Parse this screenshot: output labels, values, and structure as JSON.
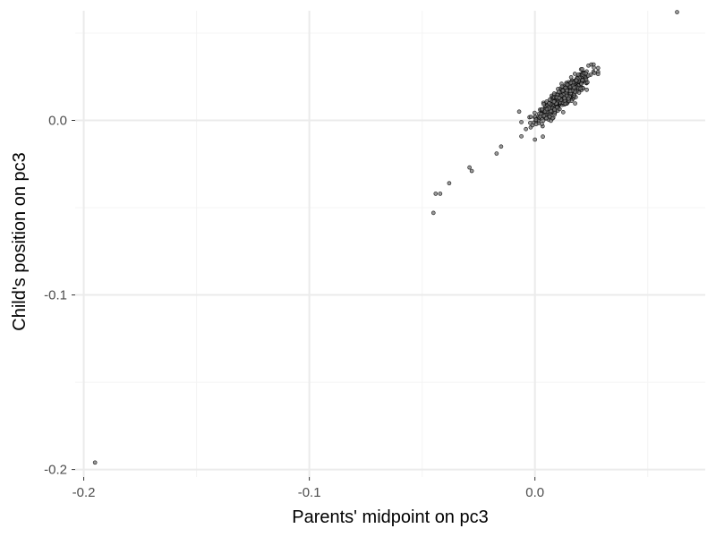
{
  "chart_data": {
    "type": "scatter",
    "title": "",
    "xlabel": "Parents' midpoint on pc3",
    "ylabel": "Child's position on pc3",
    "xlim": [
      -0.2038,
      0.0755
    ],
    "ylim": [
      -0.2043,
      0.0628
    ],
    "x_major_ticks": [
      -0.2,
      -0.1,
      0.0
    ],
    "x_tick_labels": [
      "-0.2",
      "-0.1",
      "0.0"
    ],
    "x_minor_ticks": [
      -0.15,
      -0.05,
      0.05
    ],
    "y_major_ticks": [
      -0.2,
      -0.1,
      0.0
    ],
    "y_tick_labels": [
      "-0.2",
      "-0.1",
      "0.0"
    ],
    "y_minor_ticks": [
      -0.15,
      -0.05,
      0.05
    ],
    "grid": true,
    "legend": "none",
    "colors": {
      "background": "#ffffff",
      "grid_major": "#ebebeb",
      "grid_minor": "#f4f4f4",
      "point_fill": "#7a7a7a",
      "point_stroke": "#000000"
    },
    "outliers": [
      {
        "x": -0.195,
        "y": -0.196
      },
      {
        "x": 0.063,
        "y": 0.062
      },
      {
        "x": -0.044,
        "y": -0.042
      },
      {
        "x": -0.042,
        "y": -0.042
      },
      {
        "x": -0.045,
        "y": -0.053
      },
      {
        "x": -0.038,
        "y": -0.036
      },
      {
        "x": -0.029,
        "y": -0.027
      },
      {
        "x": -0.028,
        "y": -0.029
      },
      {
        "x": -0.015,
        "y": -0.015
      },
      {
        "x": -0.017,
        "y": -0.019
      },
      {
        "x": -0.007,
        "y": 0.005
      },
      {
        "x": -0.006,
        "y": -0.001
      },
      {
        "x": -0.004,
        "y": -0.005
      },
      {
        "x": 0.0,
        "y": -0.011
      },
      {
        "x": 0.028,
        "y": 0.03
      },
      {
        "x": 0.026,
        "y": 0.032
      }
    ],
    "cluster": {
      "n_points": 520,
      "x_mean": 0.0125,
      "x_sd": 0.0058,
      "y_mean": 0.0135,
      "y_sd": 0.0068,
      "correlation": 0.88
    }
  }
}
